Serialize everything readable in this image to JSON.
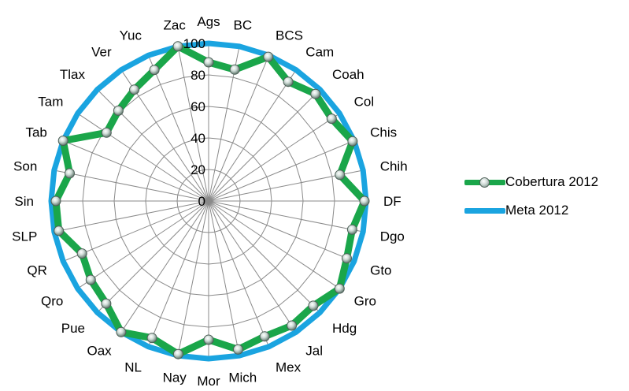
{
  "chart_data": {
    "type": "radar",
    "title": "",
    "categories": [
      "Ags",
      "BC",
      "BCS",
      "Cam",
      "Coah",
      "Col",
      "Chis",
      "Chih",
      "DF",
      "Dgo",
      "Gto",
      "Gro",
      "Hdg",
      "Jal",
      "Mex",
      "Mich",
      "Mor",
      "Nay",
      "NL",
      "Oax",
      "Pue",
      "Qro",
      "QR",
      "SLP",
      "Sin",
      "Son",
      "Tab",
      "Tam",
      "Tlax",
      "Ver",
      "Yuc",
      "Zac"
    ],
    "r_ticks": [
      0,
      20,
      40,
      60,
      80,
      100
    ],
    "r_tick_labels": [
      "0",
      "20",
      "40",
      "60",
      "80",
      "100"
    ],
    "rlim": [
      0,
      100
    ],
    "grid": true,
    "legend_position": "right",
    "series": [
      {
        "name": "Cobertura 2012",
        "color": "#1aa64a",
        "marker": "circle",
        "values": [
          88,
          85,
          99,
          91,
          96,
          94,
          99,
          85,
          99,
          93,
          95,
          100,
          94,
          95,
          93,
          96,
          88,
          99,
          94,
          100,
          92,
          90,
          87,
          97,
          97,
          90,
          100,
          78,
          81,
          85,
          90,
          100
        ]
      },
      {
        "name": "Meta 2012",
        "color": "#1aa4e0",
        "marker": "none",
        "values": [
          100,
          100,
          100,
          100,
          100,
          100,
          100,
          100,
          100,
          100,
          100,
          100,
          100,
          100,
          100,
          100,
          100,
          100,
          100,
          100,
          100,
          100,
          100,
          100,
          100,
          100,
          100,
          100,
          100,
          100,
          100,
          100
        ]
      }
    ]
  },
  "legend": {
    "items": [
      {
        "label": "Cobertura 2012",
        "color": "#1aa64a"
      },
      {
        "label": "Meta 2012",
        "color": "#1aa4e0"
      }
    ]
  }
}
